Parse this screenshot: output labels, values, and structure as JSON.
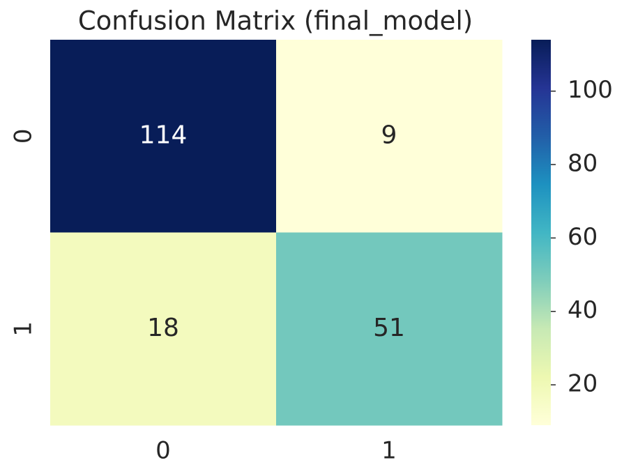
{
  "chart_data": {
    "type": "heatmap",
    "title": "Confusion Matrix (final_model)",
    "x_categories": [
      "0",
      "1"
    ],
    "y_categories": [
      "0",
      "1"
    ],
    "values": [
      [
        114,
        9
      ],
      [
        18,
        51
      ]
    ],
    "clim": [
      9,
      114
    ],
    "colorbar_ticks": [
      20,
      40,
      60,
      80,
      100
    ],
    "colorscale": [
      "#ffffd9",
      "#edf8b1",
      "#c7e9b4",
      "#7fcdbb",
      "#41b6c4",
      "#1d91c0",
      "#225ea8",
      "#253494",
      "#081d58"
    ]
  }
}
